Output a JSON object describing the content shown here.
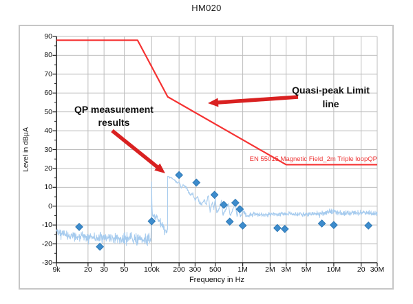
{
  "title": "HM020",
  "colors": {
    "limit_line": "#f53232",
    "legend_text": "#ee3333",
    "arrow": "#d92121",
    "trace": "#a6cbee",
    "marker_fill": "#3d8ccd",
    "marker_stroke": "#2f79b5",
    "grid": "#bdbdbd",
    "axis": "#222222",
    "frame_border": "#c6c6c6"
  },
  "chart_data": {
    "type": "line",
    "title": "HM020",
    "xlabel": "Frequency in Hz",
    "ylabel": "Level in dBµA",
    "x_scale": "log",
    "x_range": [
      9000,
      30000000
    ],
    "ylim": [
      -30,
      90
    ],
    "grid": true,
    "x_ticks": [
      {
        "f": 9000,
        "label": "9k"
      },
      {
        "f": 20000,
        "label": "20"
      },
      {
        "f": 30000,
        "label": "30"
      },
      {
        "f": 50000,
        "label": "50"
      },
      {
        "f": 100000,
        "label": "100k"
      },
      {
        "f": 200000,
        "label": "200"
      },
      {
        "f": 300000,
        "label": "300"
      },
      {
        "f": 500000,
        "label": "500"
      },
      {
        "f": 1000000,
        "label": "1M"
      },
      {
        "f": 2000000,
        "label": "2M"
      },
      {
        "f": 3000000,
        "label": "3M"
      },
      {
        "f": 5000000,
        "label": "5M"
      },
      {
        "f": 10000000,
        "label": "10M"
      },
      {
        "f": 20000000,
        "label": "20"
      },
      {
        "f": 30000000,
        "label": "30M"
      }
    ],
    "y_ticks": [
      90,
      80,
      70,
      60,
      50,
      40,
      30,
      20,
      10,
      0,
      -10,
      -20,
      -30
    ],
    "legend_text": "EN 55015 Magnetic Field_2m Triple loopQP",
    "series": [
      {
        "name": "EN 55015 Magnetic Field_2m Triple loopQP",
        "role": "limit-line",
        "type": "line",
        "color": "#f53232",
        "points": [
          [
            9000,
            88
          ],
          [
            70000,
            88
          ],
          [
            150000,
            58
          ],
          [
            3000000,
            22
          ],
          [
            30000000,
            22
          ]
        ]
      },
      {
        "name": "measurement-trace",
        "role": "trace",
        "type": "noisy-line",
        "color": "#a6cbee",
        "noise_seed": 42,
        "keypoints": [
          [
            9000,
            -12.5,
            2.5
          ],
          [
            10000,
            -14.5,
            3
          ],
          [
            13000,
            -16,
            3
          ],
          [
            20000,
            -16.5,
            3.2
          ],
          [
            30000,
            -17,
            3.5
          ],
          [
            50000,
            -17,
            3.8
          ],
          [
            70000,
            -17.5,
            4
          ],
          [
            90000,
            -18,
            4.2
          ],
          [
            98000,
            -17.5,
            4
          ],
          [
            99400,
            -6,
            1
          ],
          [
            100000,
            13,
            0.4
          ],
          [
            100700,
            1,
            0.8
          ],
          [
            102000,
            -4.5,
            1.2
          ],
          [
            108000,
            -5.5,
            2
          ],
          [
            115000,
            -5.5,
            2.5
          ],
          [
            125000,
            -9,
            3
          ],
          [
            137000,
            -11.5,
            2.5
          ],
          [
            147000,
            -13.5,
            1.2
          ],
          [
            149300,
            -12,
            0.5
          ],
          [
            150000,
            15.8,
            0.3
          ],
          [
            158000,
            15.3,
            0.4
          ],
          [
            168000,
            14.8,
            0.4
          ],
          [
            180000,
            13.8,
            0.5
          ],
          [
            191000,
            12.4,
            0.5
          ],
          [
            200000,
            13,
            0.5
          ],
          [
            212000,
            9.6,
            0.7
          ],
          [
            222000,
            11.2,
            0.7
          ],
          [
            238000,
            10.4,
            0.7
          ],
          [
            252000,
            7.8,
            0.8
          ],
          [
            266000,
            6.2,
            0.9
          ],
          [
            283000,
            6.8,
            0.9
          ],
          [
            300000,
            2.8,
            1
          ],
          [
            318000,
            5,
            1
          ],
          [
            336000,
            1.6,
            1
          ],
          [
            356000,
            1.2,
            1.1
          ],
          [
            378000,
            3.6,
            1.2
          ],
          [
            398000,
            1,
            1
          ],
          [
            420000,
            6,
            0.9
          ],
          [
            438000,
            -2.6,
            1
          ],
          [
            462000,
            2,
            1
          ],
          [
            482000,
            -1.2,
            1
          ],
          [
            500000,
            4.4,
            0.8
          ],
          [
            518000,
            -3.6,
            1
          ],
          [
            552000,
            -1.2,
            1
          ],
          [
            585000,
            3,
            0.8
          ],
          [
            608000,
            -4.6,
            1
          ],
          [
            645000,
            -2,
            1
          ],
          [
            695000,
            1.2,
            0.8
          ],
          [
            728000,
            -5.2,
            1
          ],
          [
            775000,
            -2.2,
            1
          ],
          [
            828000,
            2,
            0.8
          ],
          [
            865000,
            -5.6,
            1
          ],
          [
            898000,
            -1.2,
            0.9
          ],
          [
            945000,
            -5.2,
            1
          ],
          [
            1000000,
            -2.6,
            1.2
          ],
          [
            1100000,
            -5,
            1.4
          ],
          [
            1300000,
            -4.2,
            1.5
          ],
          [
            1700000,
            -4.6,
            1.4
          ],
          [
            2200000,
            -4.2,
            1.4
          ],
          [
            3000000,
            -4.2,
            1.5
          ],
          [
            4200000,
            -4.4,
            1.5
          ],
          [
            6000000,
            -4,
            1.6
          ],
          [
            8000000,
            -3.6,
            1.7
          ],
          [
            9500000,
            -2.6,
            1.9
          ],
          [
            11000000,
            -3.6,
            1.7
          ],
          [
            15000000,
            -3.8,
            1.7
          ],
          [
            20000000,
            -3.5,
            1.8
          ],
          [
            26000000,
            -3.6,
            1.8
          ],
          [
            30000000,
            -4,
            1.8
          ]
        ]
      },
      {
        "name": "QP measurement results",
        "role": "qp-points",
        "type": "scatter",
        "marker": "diamond",
        "color": "#3d8ccd",
        "points": [
          [
            16000,
            -11
          ],
          [
            27000,
            -21.5
          ],
          [
            100000,
            -8
          ],
          [
            200000,
            16.5
          ],
          [
            310000,
            12.5
          ],
          [
            490000,
            6
          ],
          [
            620000,
            0.7
          ],
          [
            720000,
            -8.2
          ],
          [
            830000,
            1.8
          ],
          [
            930000,
            -1.6
          ],
          [
            1000000,
            -10.3
          ],
          [
            2400000,
            -11.6
          ],
          [
            2900000,
            -12.1
          ],
          [
            7400000,
            -9.2
          ],
          [
            10000000,
            -10
          ],
          [
            24000000,
            -10.3
          ]
        ]
      }
    ],
    "annotations": [
      {
        "text": "QP measurement results",
        "arrow": {
          "from": [
            163,
            190
          ],
          "to": [
            240,
            252
          ]
        }
      },
      {
        "text": "Quasi-peak Limit line",
        "arrow": {
          "from": [
            433,
            141
          ],
          "to": [
            302,
            150
          ]
        }
      }
    ]
  }
}
